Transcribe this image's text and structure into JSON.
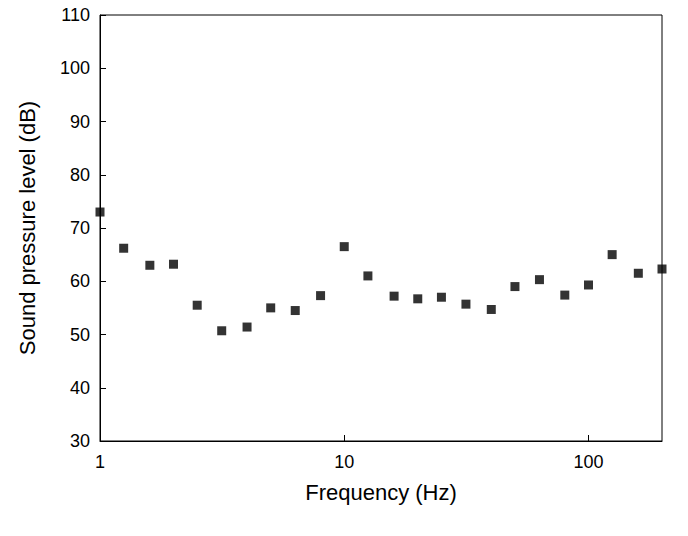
{
  "chart_data": {
    "type": "scatter",
    "xlabel": "Frequency (Hz)",
    "ylabel": "Sound pressure level (dB)",
    "x": [
      1,
      1.25,
      1.6,
      2,
      2.5,
      3.15,
      4,
      5,
      6.3,
      8,
      10,
      12.5,
      16,
      20,
      25,
      31.5,
      40,
      50,
      63,
      80,
      100,
      125,
      160,
      200
    ],
    "values": [
      73,
      66.2,
      63,
      63.2,
      55.5,
      50.7,
      51.4,
      55,
      54.5,
      57.3,
      66.5,
      61,
      57.2,
      56.7,
      57,
      55.7,
      54.7,
      59,
      60.3,
      57.4,
      59.3,
      65,
      61.5,
      62.3
    ],
    "color": "#000000",
    "marker": "square",
    "log": "x",
    "xlim": [
      1,
      200
    ],
    "xticks": [
      1,
      10,
      100
    ],
    "ylim": [
      30,
      110
    ],
    "yticks": [
      30,
      40,
      50,
      60,
      70,
      80,
      90,
      100,
      110
    ],
    "grid": false
  }
}
